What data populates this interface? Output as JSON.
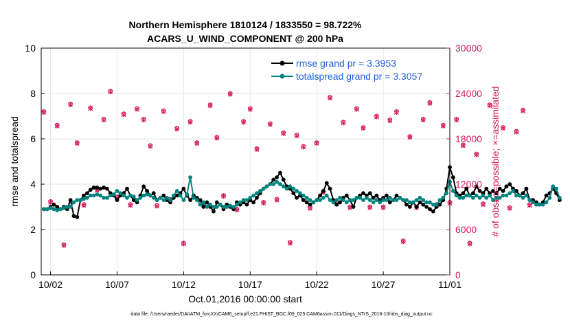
{
  "chart_data": {
    "type": "line",
    "title": "Northern Hemisphere 1810124 / 1833550 = 98.722%",
    "subtitle": "ACARS_U_WIND_COMPONENT @ 200 hPa",
    "xlabel": "Oct.01,2016 00:00:00 start",
    "ylabel_left": "rmse and totalspread",
    "ylabel_right": "# of obs: o=possible; ×=assimilated",
    "footer": "data file: /Users/raeder/DAI/ATM_forcXX/CAM6_setup/f.e21.FHIST_BGC.f09_025.CAM6assim.011/Diags_NTrS_2016-10/obs_diag_output.nc",
    "xlim": [
      1.3,
      32.0
    ],
    "ylim_left": [
      0,
      10
    ],
    "ylim_right": [
      0,
      30000
    ],
    "x_ticks": [
      2,
      7,
      12,
      17,
      22,
      27,
      32
    ],
    "x_tick_labels": [
      "10/02",
      "10/07",
      "10/12",
      "10/17",
      "10/22",
      "10/27",
      "11/01"
    ],
    "y_ticks_left": [
      "0",
      "2",
      "4",
      "6",
      "8",
      "10"
    ],
    "y_ticks_right": [
      "0",
      "6000",
      "12000",
      "18000",
      "24000",
      "30000"
    ],
    "legend": [
      "rmse grand pr = 3.3953",
      "totalspread grand pr = 3.3057"
    ],
    "colors": {
      "rmse": "#000000",
      "spread": "#00847f",
      "obs": "#d6195a",
      "legend_text": "#1f5fe0",
      "grid": "#e6e6e6"
    },
    "series": [
      {
        "name": "rmse",
        "x_start": 1.5,
        "x_step": 0.25,
        "values": [
          2.9,
          2.9,
          3.0,
          3.1,
          3.0,
          2.9,
          3.0,
          2.9,
          3.3,
          2.6,
          2.55,
          3.3,
          3.5,
          3.6,
          3.75,
          3.85,
          3.85,
          3.8,
          3.85,
          3.8,
          3.6,
          3.5,
          3.3,
          3.5,
          3.6,
          3.8,
          3.5,
          3.3,
          3.2,
          3.5,
          3.9,
          3.7,
          3.5,
          3.6,
          3.3,
          3.4,
          3.5,
          3.3,
          3.2,
          3.4,
          3.5,
          3.6,
          3.8,
          3.5,
          3.3,
          3.5,
          3.4,
          3.3,
          3.0,
          3.2,
          3.0,
          2.8,
          3.2,
          3.1,
          2.9,
          3.1,
          3.0,
          2.9,
          3.2,
          3.1,
          3.2,
          3.1,
          3.3,
          3.2,
          3.4,
          3.6,
          3.8,
          3.9,
          4.0,
          4.2,
          4.3,
          4.5,
          4.2,
          3.9,
          3.8,
          3.6,
          3.4,
          3.5,
          3.3,
          3.2,
          3.1,
          3.2,
          3.3,
          3.5,
          3.7,
          4.05,
          3.8,
          3.3,
          3.1,
          3.2,
          3.4,
          3.5,
          3.3,
          3.0,
          3.4,
          3.5,
          3.6,
          3.5,
          3.6,
          3.4,
          3.5,
          3.3,
          3.4,
          3.5,
          3.2,
          3.3,
          3.5,
          3.4,
          3.3,
          3.1,
          3.0,
          3.2,
          3.0,
          3.2,
          3.1,
          3.0,
          2.9,
          2.8,
          3.0,
          3.1,
          3.3,
          3.8,
          4.75,
          4.3,
          3.6,
          3.5,
          3.6,
          3.8,
          3.5,
          3.6,
          3.9,
          3.7,
          3.6,
          3.8,
          3.6,
          3.7,
          3.6,
          3.8,
          3.7,
          3.9,
          4.0,
          3.8,
          3.7,
          3.5,
          3.6,
          3.8,
          3.3,
          3.3,
          3.2,
          3.1,
          3.2,
          3.5,
          3.6,
          3.8,
          3.6,
          3.3
        ]
      },
      {
        "name": "totalspread",
        "x_start": 1.5,
        "x_step": 0.25,
        "values": [
          2.9,
          2.9,
          2.95,
          2.9,
          2.85,
          2.9,
          2.95,
          3.0,
          3.0,
          3.2,
          3.3,
          3.3,
          3.35,
          3.4,
          3.5,
          3.5,
          3.55,
          3.5,
          3.4,
          3.4,
          3.5,
          3.55,
          3.7,
          3.6,
          3.5,
          3.4,
          3.5,
          3.45,
          3.3,
          3.4,
          3.5,
          3.55,
          3.5,
          3.4,
          3.3,
          3.4,
          3.3,
          3.4,
          3.3,
          3.5,
          3.7,
          3.5,
          3.3,
          3.55,
          4.3,
          3.4,
          3.3,
          3.1,
          3.2,
          3.0,
          3.1,
          3.0,
          3.0,
          3.1,
          3.0,
          3.0,
          3.05,
          3.0,
          3.1,
          3.2,
          3.3,
          3.3,
          3.4,
          3.5,
          3.6,
          3.7,
          3.8,
          3.9,
          4.0,
          4.0,
          4.1,
          4.0,
          3.9,
          3.8,
          3.9,
          3.8,
          3.7,
          3.6,
          3.5,
          3.4,
          3.3,
          3.2,
          3.3,
          3.3,
          3.4,
          3.5,
          3.3,
          3.2,
          3.3,
          3.4,
          3.3,
          3.2,
          3.3,
          3.3,
          3.4,
          3.4,
          3.3,
          3.4,
          3.3,
          3.2,
          3.3,
          3.2,
          3.3,
          3.3,
          3.4,
          3.3,
          3.3,
          3.4,
          3.3,
          3.3,
          3.2,
          3.2,
          3.3,
          3.4,
          3.3,
          3.2,
          3.2,
          3.1,
          3.1,
          3.3,
          3.4,
          3.6,
          4.1,
          3.7,
          3.5,
          3.4,
          3.4,
          3.5,
          3.5,
          3.4,
          3.5,
          3.4,
          3.5,
          3.4,
          3.5,
          3.3,
          3.4,
          3.4,
          3.5,
          3.5,
          3.6,
          3.7,
          3.5,
          3.5,
          3.4,
          3.5,
          3.3,
          3.2,
          3.1,
          3.1,
          3.1,
          3.2,
          3.4,
          3.9,
          3.8,
          3.4
        ]
      },
      {
        "name": "obs_possible",
        "x_start": 1.5,
        "x_step": 0.5,
        "values": [
          21600,
          9700,
          19800,
          4000,
          22600,
          17500,
          9300,
          22100,
          11300,
          20600,
          24300,
          10300,
          21300,
          9300,
          22000,
          20600,
          17100,
          9200,
          21700,
          10000,
          19400,
          4200,
          20300,
          17500,
          9200,
          22500,
          18200,
          10500,
          24000,
          8700,
          20300,
          22000,
          16700,
          9600,
          20000,
          10000,
          18800,
          4300,
          18500,
          17000,
          8900,
          17500,
          11000,
          23500,
          9500,
          20200,
          9000,
          22000,
          19500,
          9000,
          21000,
          9000,
          20500,
          21600,
          4500,
          18300,
          9000,
          20600,
          22800,
          9300,
          19800,
          9600,
          20600,
          17200,
          4200,
          16000,
          9400,
          22500,
          10000,
          19500,
          8900,
          19000,
          21800,
          9300
        ]
      },
      {
        "name": "obs_assimilated",
        "x_start": 1.5,
        "x_step": 0.5,
        "values": [
          21500,
          9600,
          19700,
          3900,
          22500,
          17400,
          9200,
          22000,
          11200,
          20500,
          24200,
          10200,
          21200,
          9200,
          21900,
          20500,
          17000,
          9100,
          21600,
          9900,
          19300,
          4100,
          20200,
          17400,
          9100,
          22400,
          18100,
          10400,
          23900,
          8600,
          20200,
          21900,
          16600,
          9500,
          19900,
          9900,
          18700,
          4200,
          18400,
          16900,
          8800,
          17400,
          10900,
          23400,
          9400,
          20100,
          8900,
          21900,
          19400,
          8900,
          20900,
          8900,
          20400,
          21500,
          4400,
          18200,
          8900,
          20500,
          22700,
          9200,
          19700,
          9500,
          20500,
          17100,
          4100,
          15900,
          9300,
          22400,
          9900,
          19400,
          8800,
          18900,
          21700,
          9200
        ]
      }
    ]
  }
}
